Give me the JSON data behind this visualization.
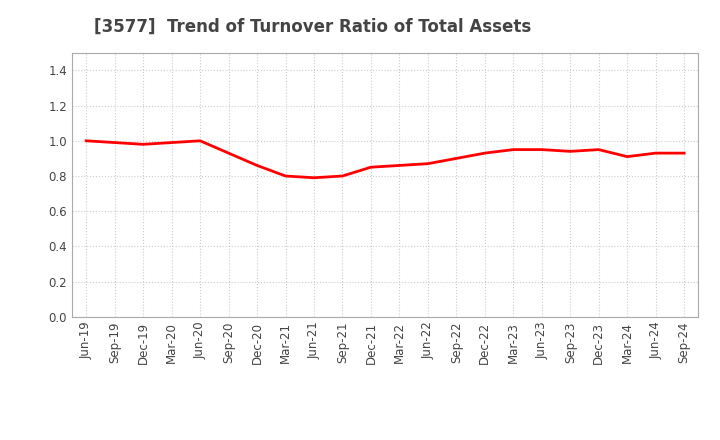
{
  "title": "[3577]  Trend of Turnover Ratio of Total Assets",
  "x_labels": [
    "Jun-19",
    "Sep-19",
    "Dec-19",
    "Mar-20",
    "Jun-20",
    "Sep-20",
    "Dec-20",
    "Mar-21",
    "Jun-21",
    "Sep-21",
    "Dec-21",
    "Mar-22",
    "Jun-22",
    "Sep-22",
    "Dec-22",
    "Mar-23",
    "Jun-23",
    "Sep-23",
    "Dec-23",
    "Mar-24",
    "Jun-24",
    "Sep-24"
  ],
  "values": [
    1.0,
    0.99,
    0.98,
    0.99,
    1.0,
    0.93,
    0.86,
    0.8,
    0.79,
    0.8,
    0.85,
    0.86,
    0.87,
    0.9,
    0.93,
    0.95,
    0.95,
    0.94,
    0.95,
    0.91,
    0.93,
    0.93
  ],
  "line_color": "#ff0000",
  "line_width": 2.0,
  "ylim": [
    0.0,
    1.5
  ],
  "yticks": [
    0.0,
    0.2,
    0.4,
    0.6,
    0.8,
    1.0,
    1.2,
    1.4
  ],
  "grid_color": "#cccccc",
  "grid_linestyle": ":",
  "grid_linewidth": 0.8,
  "background_color": "#ffffff",
  "title_fontsize": 12,
  "tick_fontsize": 8.5,
  "title_color": "#444444"
}
